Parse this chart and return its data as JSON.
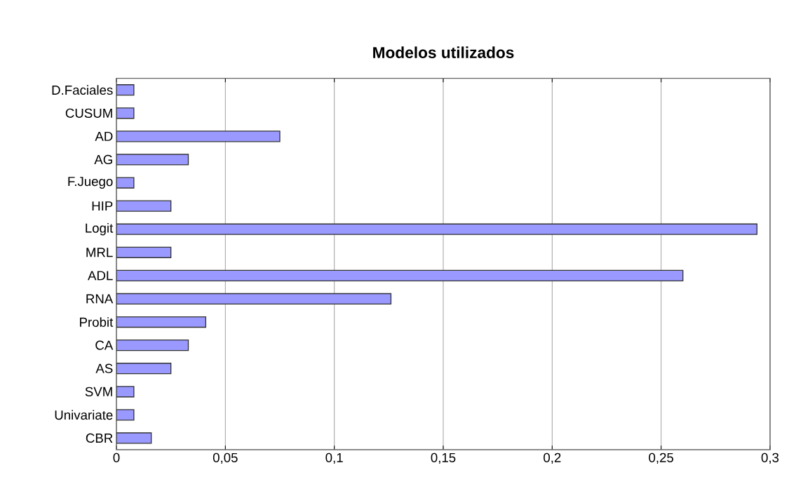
{
  "chart_data": {
    "type": "bar",
    "orientation": "horizontal",
    "title": "Modelos utilizados",
    "categories": [
      "D.Faciales",
      "CUSUM",
      "AD",
      "AG",
      "F.Juego",
      "HIP",
      "Logit",
      "MRL",
      "ADL",
      "RNA",
      "Probit",
      "CA",
      "AS",
      "SVM",
      "Univariate",
      "CBR"
    ],
    "values": [
      0.008,
      0.008,
      0.075,
      0.033,
      0.008,
      0.025,
      0.294,
      0.025,
      0.26,
      0.126,
      0.041,
      0.033,
      0.025,
      0.008,
      0.008,
      0.016
    ],
    "color": "#9999ff",
    "xlim": [
      0,
      0.3
    ],
    "xticks": [
      0,
      {
        "value": 0.05,
        "label": "0,05"
      },
      {
        "value": 0.1,
        "label": "0,1"
      },
      {
        "value": 0.15,
        "label": "0,15"
      },
      {
        "value": 0.2,
        "label": "0,2"
      },
      {
        "value": 0.25,
        "label": "0,25"
      },
      {
        "value": 0.3,
        "label": "0,3"
      }
    ],
    "grid": "x"
  }
}
